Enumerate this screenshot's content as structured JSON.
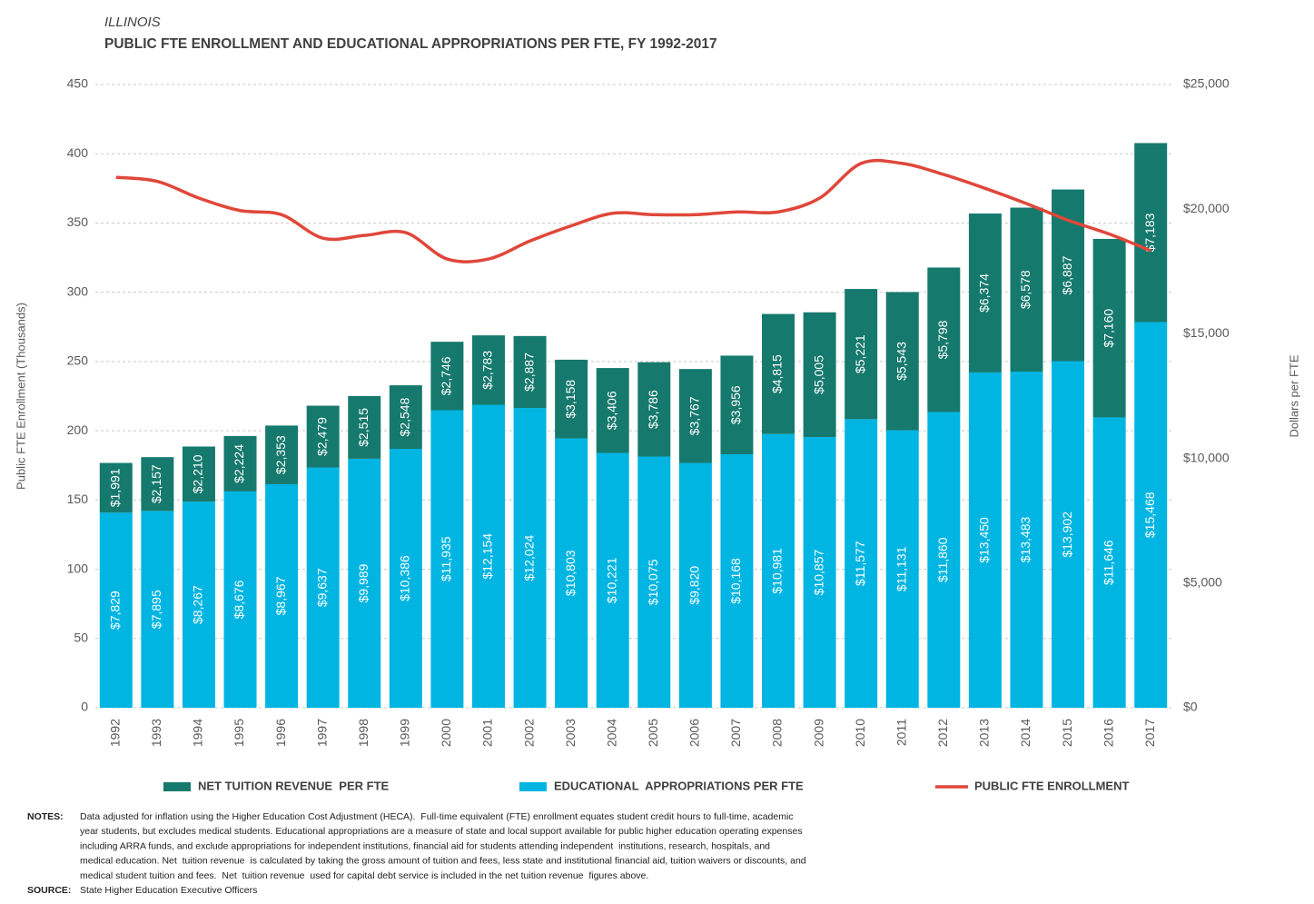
{
  "chart_data": {
    "type": "bar",
    "title": "ILLINOIS",
    "subtitle": "PUBLIC FTE ENROLLMENT AND EDUCATIONAL APPROPRIATIONS PER FTE, FY 1992-2017",
    "y_label": "Public FTE Enrollment (Thousands)",
    "y2_label": "Dollars per FTE",
    "categories": [
      "1992",
      "1993",
      "1994",
      "1995",
      "1996",
      "1997",
      "1998",
      "1999",
      "2000",
      "2001",
      "2002",
      "2003",
      "2004",
      "2005",
      "2006",
      "2007",
      "2008",
      "2009",
      "2010",
      "2011",
      "2012",
      "2013",
      "2014",
      "2015",
      "2016",
      "2017"
    ],
    "series": [
      {
        "name": "NET TUITION REVENUE  PER FTE",
        "type": "bar",
        "axis": "y2",
        "color": "#16796d",
        "values": [
          1991,
          2157,
          2210,
          2224,
          2353,
          2479,
          2515,
          2548,
          2746,
          2783,
          2887,
          3158,
          3406,
          3786,
          3767,
          3956,
          4815,
          5005,
          5221,
          5543,
          5798,
          6374,
          6578,
          6887,
          7160,
          7183
        ],
        "value_labels": [
          "$1,991",
          "$2,157",
          "$2,210",
          "$2,224",
          "$2,353",
          "$2,479",
          "$2,515",
          "$2,548",
          "$2,746",
          "$2,783",
          "$2,887",
          "$3,158",
          "$3,406",
          "$3,786",
          "$3,767",
          "$3,956",
          "$4,815",
          "$5,005",
          "$5,221",
          "$5,543",
          "$5,798",
          "$6,374",
          "$6,578",
          "$6,887",
          "$7,160",
          "$7,183"
        ]
      },
      {
        "name": "EDUCATIONAL  APPROPRIATIONS PER FTE",
        "type": "bar",
        "axis": "y2",
        "color": "#00b5e2",
        "values": [
          7829,
          7895,
          8267,
          8676,
          8967,
          9637,
          9989,
          10386,
          11935,
          12154,
          12024,
          10803,
          10221,
          10075,
          9820,
          10168,
          10981,
          10857,
          11577,
          11131,
          11860,
          13450,
          13483,
          13902,
          11646,
          15468
        ],
        "value_labels": [
          "$7,829",
          "$7,895",
          "$8,267",
          "$8,676",
          "$8,967",
          "$9,637",
          "$9,989",
          "$10,386",
          "$11,935",
          "$12,154",
          "$12,024",
          "$10,803",
          "$10,221",
          "$10,075",
          "$9,820",
          "$10,168",
          "$10,981",
          "$10,857",
          "$11,577",
          "$11,131",
          "$11,860",
          "$13,450",
          "$13,483",
          "$13,902",
          "$11,646",
          "$15,468"
        ]
      },
      {
        "name": "PUBLIC FTE ENROLLMENT",
        "type": "line",
        "color": "#e0473b",
        "values": [
          383,
          380,
          368,
          359,
          356,
          339,
          341,
          343,
          324,
          324,
          337,
          348,
          357,
          356,
          356,
          358,
          358,
          368,
          393,
          393,
          385,
          375,
          364,
          352,
          342,
          330
        ]
      }
    ],
    "ylim": [
      0,
      450
    ],
    "yticks": [
      0,
      50,
      100,
      150,
      200,
      250,
      300,
      350,
      400,
      450
    ],
    "y2lim": [
      0,
      25000
    ],
    "y2ticks": [
      {
        "value": 0,
        "label": "$0"
      },
      {
        "value": 5000,
        "label": "$5,000"
      },
      {
        "value": 10000,
        "label": "$10,000"
      },
      {
        "value": 15000,
        "label": "$15,000"
      },
      {
        "value": 20000,
        "label": "$20,000"
      },
      {
        "value": 25000,
        "label": "$25,000"
      }
    ],
    "grid": true,
    "legend": "bottom"
  },
  "notes": {
    "label": "NOTES:",
    "lines": [
      "Data adjusted for inflation using the Higher Education Cost Adjustment (HECA).  Full-time equivalent (FTE) enrollment equates student credit hours to full-time, academic",
      "year students, but excludes medical students. Educational appropriations are a measure of state and local support available for public higher education operating expenses",
      "including ARRA funds, and exclude appropriations for independent institutions, financial aid for students attending independent  institutions, research, hospitals, and",
      "medical education. Net  tuition revenue  is calculated by taking the gross amount of tuition and fees, less state and institutional financial aid, tuition waivers or discounts, and",
      "medical student tuition and fees.  Net  tuition revenue  used for capital debt service is included in the net tuition revenue  figures above."
    ]
  },
  "source": {
    "label": "SOURCE:",
    "text": "State Higher Education Executive Officers"
  }
}
